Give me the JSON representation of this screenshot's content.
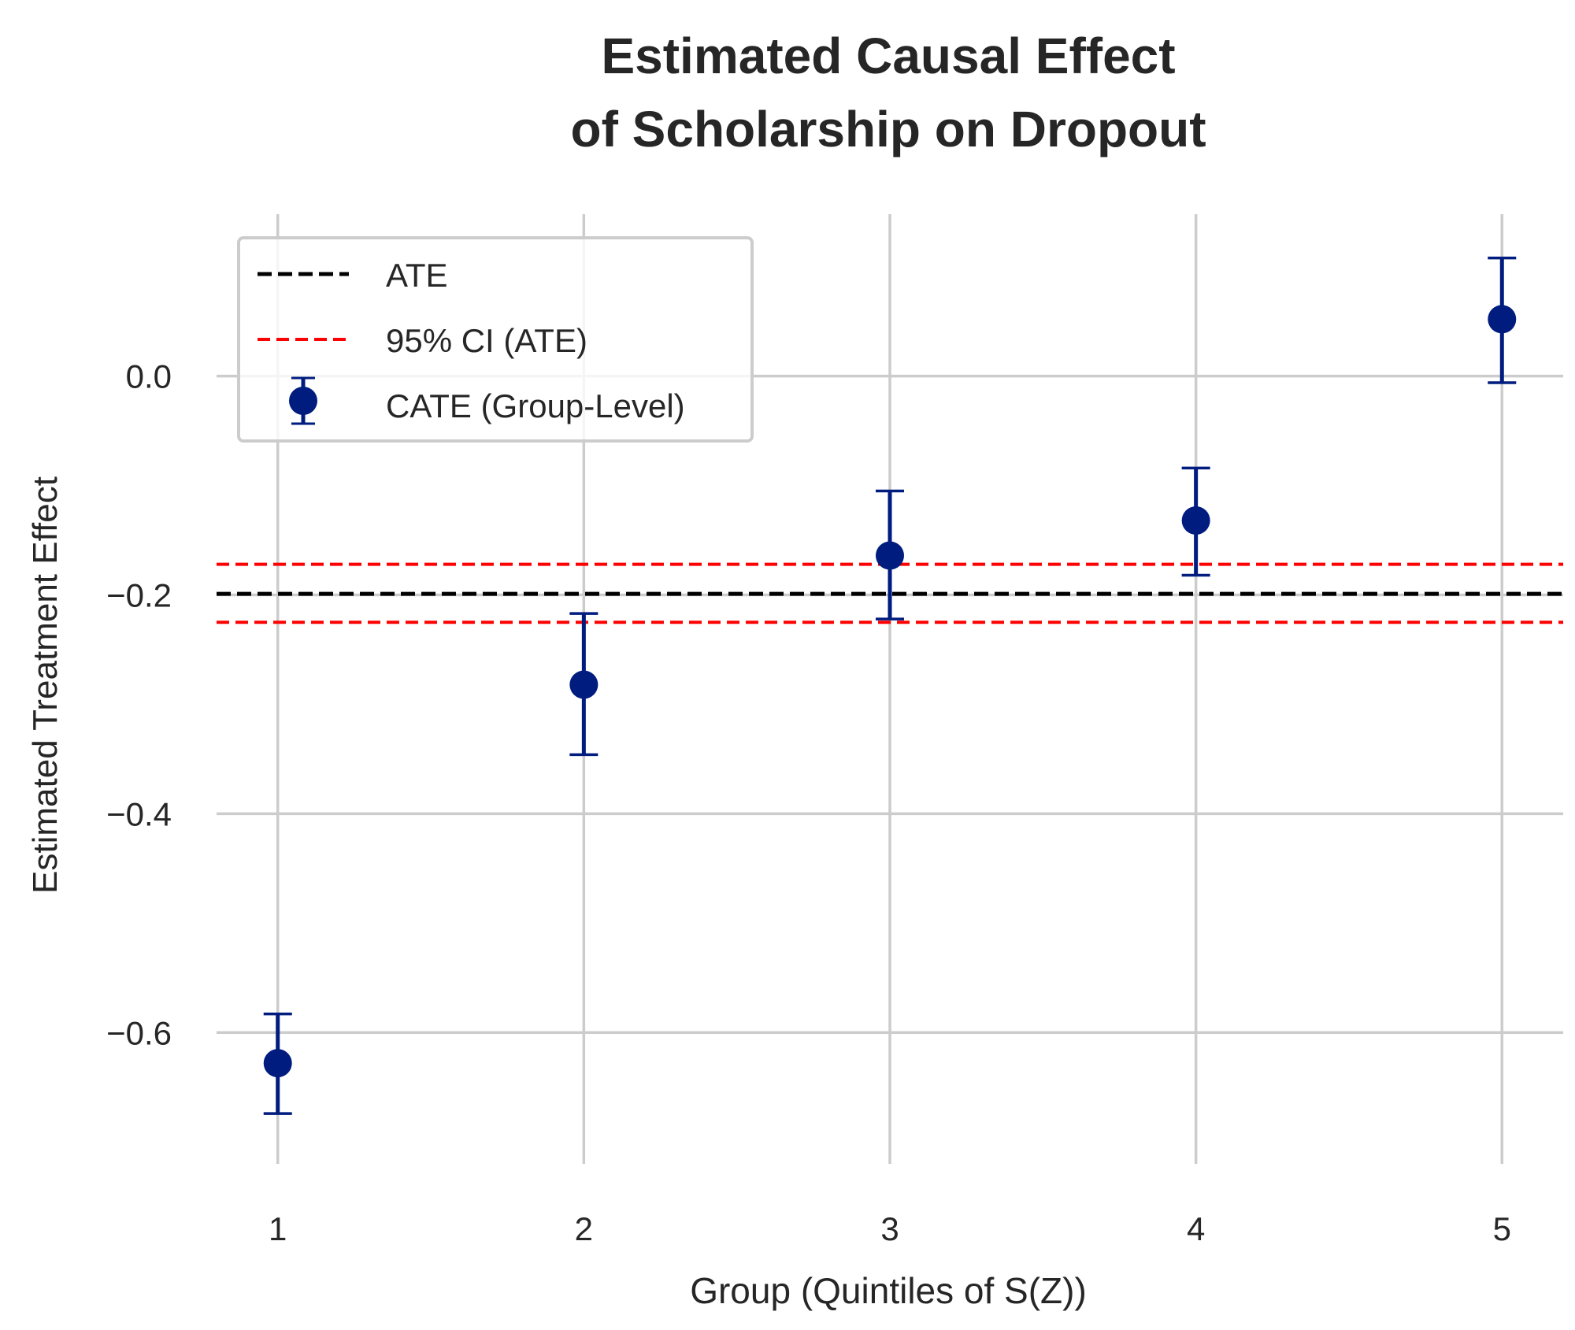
{
  "chart_data": {
    "type": "scatter",
    "title": [
      "Estimated Causal Effect",
      "of Scholarship on Dropout"
    ],
    "xlabel": "Group (Quintiles of S(Z))",
    "ylabel": "Estimated Treatment Effect",
    "x_ticks": [
      "1",
      "2",
      "3",
      "4",
      "5"
    ],
    "y_ticks": [
      {
        "value": 0.0,
        "label": "0.0"
      },
      {
        "value": -0.2,
        "label": "−0.2"
      },
      {
        "value": -0.4,
        "label": "−0.4"
      },
      {
        "value": -0.6,
        "label": "−0.6"
      }
    ],
    "xlim": [
      0.8,
      5.2
    ],
    "ylim": [
      -0.72,
      0.148
    ],
    "grid": true,
    "legend_position": "upper-left",
    "ate": {
      "name": "ATE",
      "value": -0.199,
      "color": "#000000",
      "line_style": "dashed"
    },
    "ate_ci": {
      "name": "95% CI (ATE)",
      "lower": -0.225,
      "upper": -0.172,
      "color": "#ff0000",
      "line_style": "dashed"
    },
    "series": [
      {
        "name": "CATE (Group-Level)",
        "color": "#001c7f",
        "points": [
          {
            "x": 1,
            "y": -0.628,
            "lower": -0.674,
            "upper": -0.583
          },
          {
            "x": 2,
            "y": -0.282,
            "lower": -0.346,
            "upper": -0.217
          },
          {
            "x": 3,
            "y": -0.164,
            "lower": -0.222,
            "upper": -0.105
          },
          {
            "x": 4,
            "y": -0.132,
            "lower": -0.182,
            "upper": -0.084
          },
          {
            "x": 5,
            "y": 0.052,
            "lower": -0.006,
            "upper": 0.108
          }
        ]
      }
    ]
  }
}
